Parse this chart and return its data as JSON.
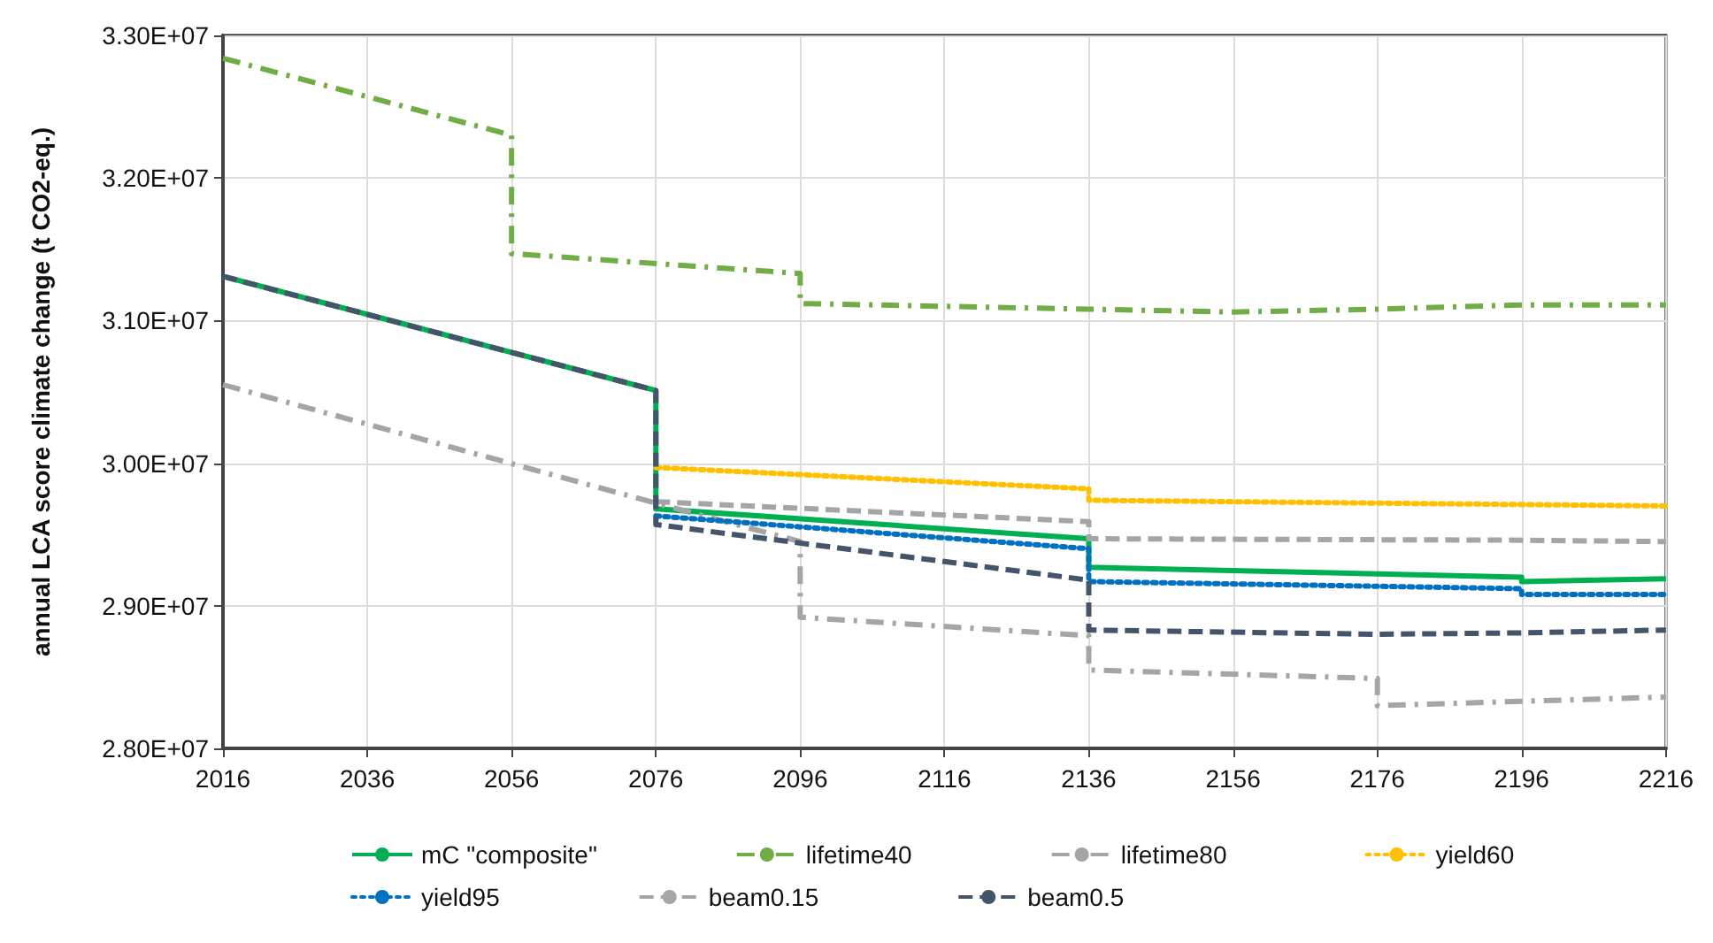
{
  "chart_data": {
    "type": "line",
    "ylabel": "annual LCA score climate change (t CO2-eq.)",
    "xlim": [
      2016,
      2216
    ],
    "xticks": [
      2016,
      2036,
      2056,
      2076,
      2096,
      2116,
      2136,
      2156,
      2176,
      2196,
      2216
    ],
    "ylim": [
      28000000,
      33000000
    ],
    "yticks": [
      {
        "value": 28000000,
        "label": "2.80E+07"
      },
      {
        "value": 29000000,
        "label": "2.90E+07"
      },
      {
        "value": 30000000,
        "label": "3.00E+07"
      },
      {
        "value": 31000000,
        "label": "3.10E+07"
      },
      {
        "value": 32000000,
        "label": "3.20E+07"
      },
      {
        "value": 33000000,
        "label": "3.30E+07"
      }
    ],
    "grid": true,
    "legend": "bottom",
    "marker": "none",
    "series": [
      {
        "name": "mC \"composite\"",
        "color": "#00b050",
        "line_style": "solid",
        "x": [
          2016,
          2076,
          2076,
          2136,
          2136,
          2196,
          2196,
          2216
        ],
        "values": [
          31310000,
          30510000,
          29680000,
          29470000,
          29270000,
          29200000,
          29170000,
          29190000
        ]
      },
      {
        "name": "lifetime40",
        "color": "#70ad47",
        "line_style": "dashdot",
        "x": [
          2016,
          2056,
          2056,
          2096,
          2096,
          2136,
          2156,
          2176,
          2196,
          2216
        ],
        "values": [
          32840000,
          32300000,
          31470000,
          31330000,
          31120000,
          31080000,
          31060000,
          31080000,
          31110000,
          31110000
        ]
      },
      {
        "name": "lifetime80",
        "color": "#a5a5a5",
        "line_style": "dashdot",
        "x": [
          2016,
          2076,
          2096,
          2096,
          2136,
          2136,
          2176,
          2176,
          2216
        ],
        "values": [
          30550000,
          29720000,
          29450000,
          28920000,
          28790000,
          28550000,
          28490000,
          28300000,
          28360000
        ]
      },
      {
        "name": "yield60",
        "color": "#ffc000",
        "line_style": "dotted",
        "x": [
          2076,
          2136,
          2136,
          2216
        ],
        "values": [
          29970000,
          29820000,
          29740000,
          29700000
        ]
      },
      {
        "name": "yield95",
        "color": "#0070c0",
        "line_style": "dotted",
        "x": [
          2076,
          2136,
          2136,
          2196,
          2196,
          2216
        ],
        "values": [
          29630000,
          29400000,
          29170000,
          29120000,
          29080000,
          29080000
        ]
      },
      {
        "name": "beam0.15",
        "color": "#a5a5a5",
        "line_style": "dashed",
        "x": [
          2076,
          2136,
          2136,
          2196,
          2216
        ],
        "values": [
          29730000,
          29590000,
          29470000,
          29460000,
          29450000
        ]
      },
      {
        "name": "beam0.5",
        "color": "#44546a",
        "line_style": "dashed",
        "x": [
          2016,
          2076,
          2076,
          2136,
          2136,
          2176,
          2196,
          2216
        ],
        "values": [
          31310000,
          30510000,
          29570000,
          29180000,
          28830000,
          28800000,
          28810000,
          28830000
        ]
      }
    ]
  }
}
